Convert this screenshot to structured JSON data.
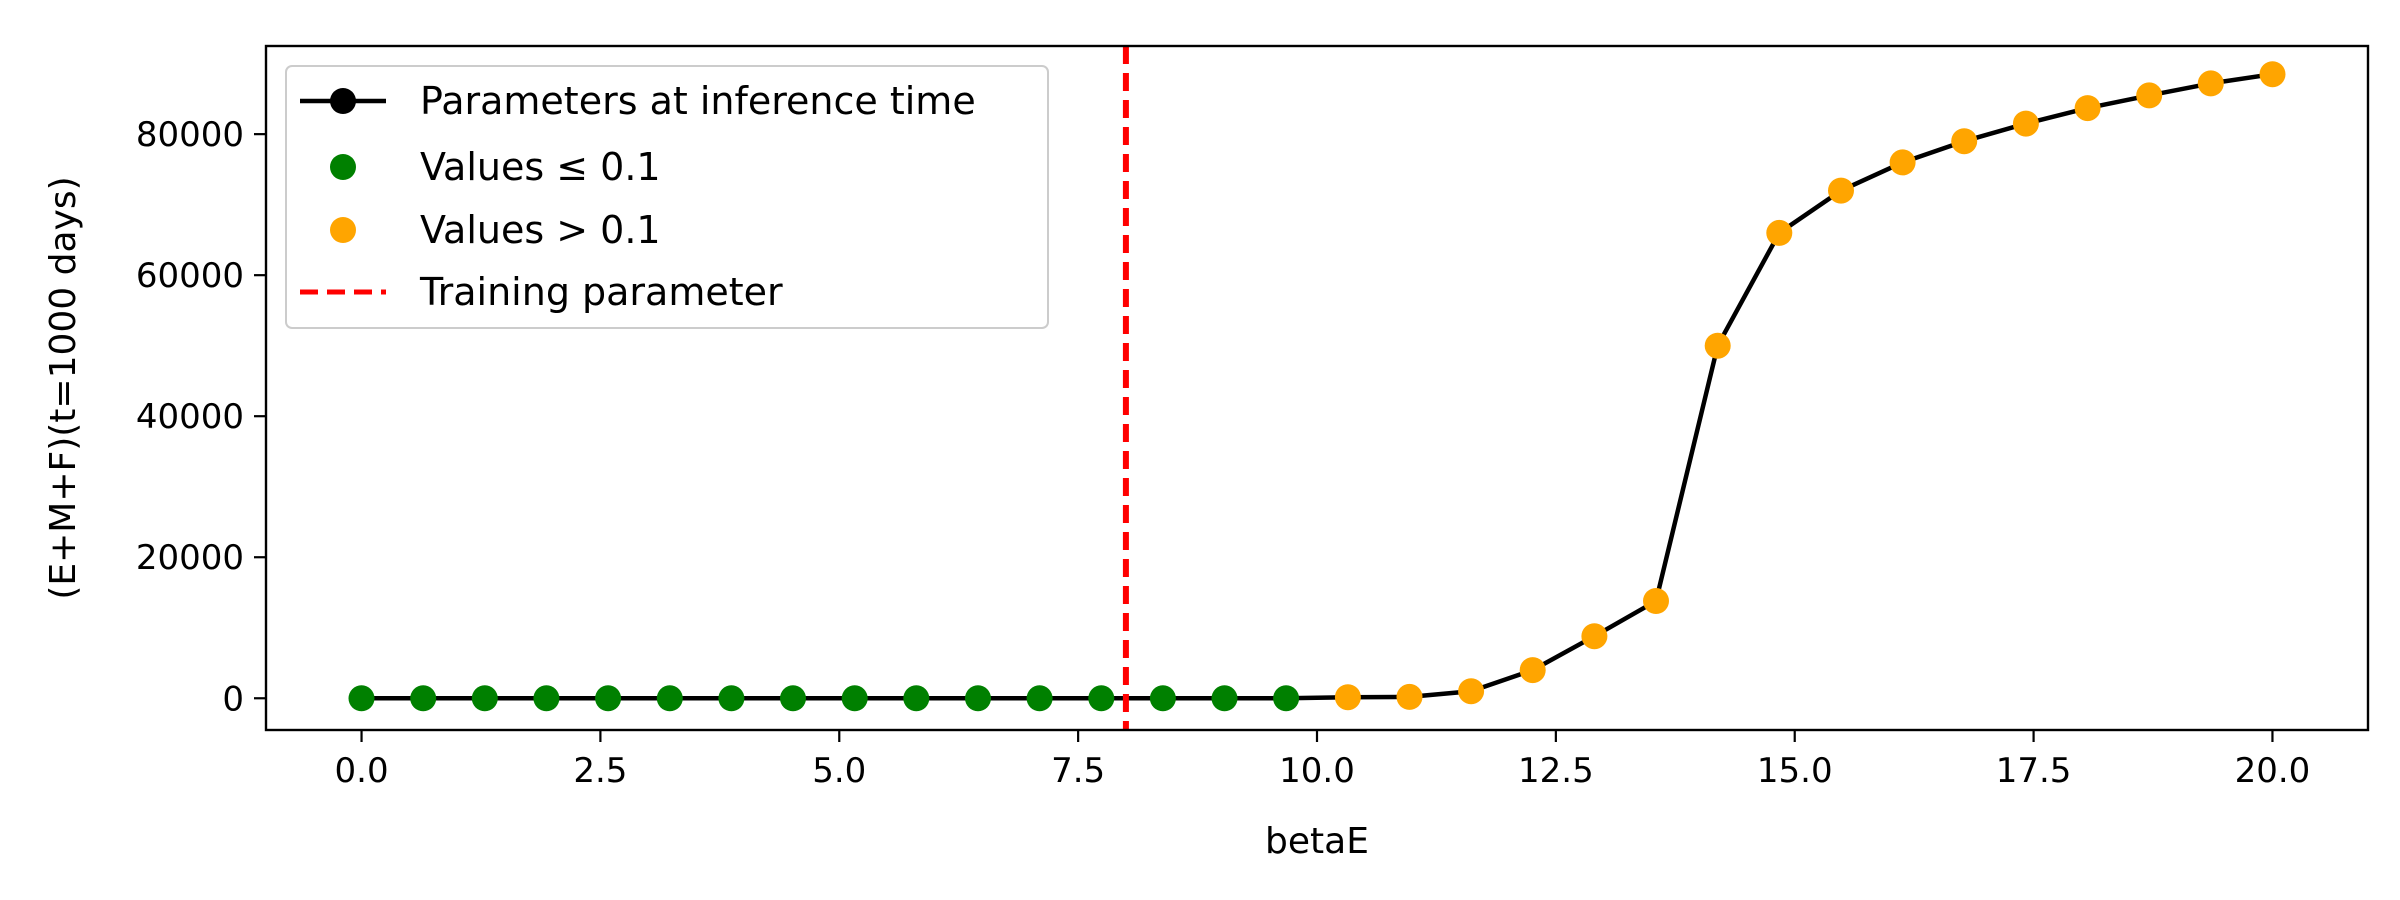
{
  "chart_data": {
    "type": "scatter",
    "xlabel": "betaE",
    "ylabel": "(E+M+F)(t=1000 days)",
    "xlim": [
      -1.0,
      21.0
    ],
    "ylim": [
      -4500,
      92500
    ],
    "xticks": [
      "0.0",
      "2.5",
      "5.0",
      "7.5",
      "10.0",
      "12.5",
      "15.0",
      "17.5",
      "20.0"
    ],
    "xtick_values": [
      0,
      2.5,
      5,
      7.5,
      10,
      12.5,
      15,
      17.5,
      20
    ],
    "yticks": [
      "0",
      "20000",
      "40000",
      "60000",
      "80000"
    ],
    "ytick_values": [
      0,
      20000,
      40000,
      60000,
      80000
    ],
    "grid": false,
    "legend_position": "top-left",
    "threshold": 0.1,
    "training_parameter": 8.0,
    "colors": {
      "line": "#000000",
      "low": "#008000",
      "high": "#ffa500",
      "training": "#ff0000"
    },
    "legend": [
      "Parameters at inference time",
      "Values ≤ 0.1",
      "Values > 0.1",
      "Training parameter"
    ],
    "series": [
      {
        "name": "Parameters at inference time",
        "x": [
          0.0,
          0.645,
          1.29,
          1.935,
          2.58,
          3.226,
          3.871,
          4.516,
          5.161,
          5.806,
          6.452,
          7.097,
          7.742,
          8.387,
          9.032,
          9.677,
          10.323,
          10.968,
          11.613,
          12.258,
          12.903,
          13.548,
          14.194,
          14.839,
          15.484,
          16.129,
          16.774,
          17.419,
          18.065,
          18.71,
          19.355,
          20.0
        ],
        "y": [
          0,
          0,
          0,
          0,
          0,
          0,
          0,
          0,
          0,
          0,
          0,
          0,
          0,
          0,
          0,
          0,
          150,
          200,
          1000,
          4000,
          8800,
          13800,
          50000,
          66000,
          72000,
          76000,
          79000,
          81500,
          83700,
          85500,
          87200,
          88500
        ]
      }
    ]
  }
}
